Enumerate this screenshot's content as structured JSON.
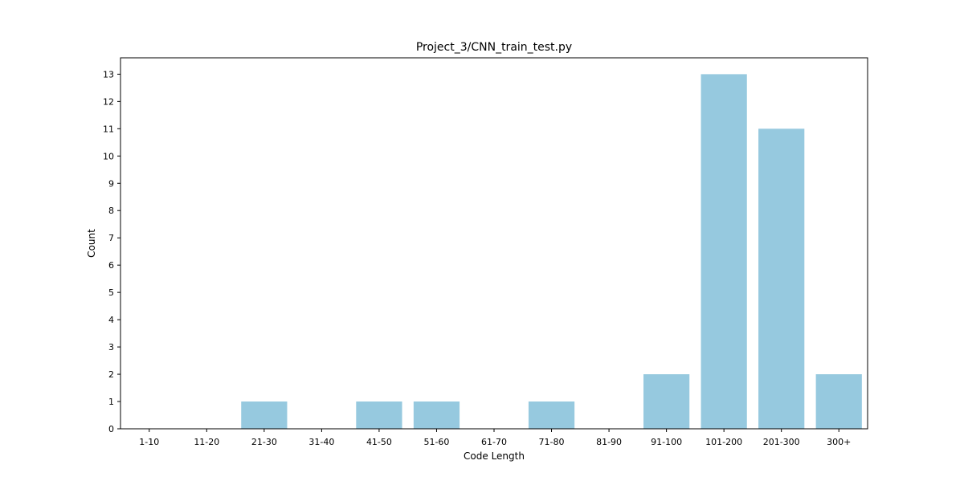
{
  "chart_data": {
    "type": "bar",
    "title": "Project_3/CNN_train_test.py",
    "xlabel": "Code Length",
    "ylabel": "Count",
    "categories": [
      "1-10",
      "11-20",
      "21-30",
      "31-40",
      "41-50",
      "51-60",
      "61-70",
      "71-80",
      "81-90",
      "91-100",
      "101-200",
      "201-300",
      "300+"
    ],
    "values": [
      0,
      0,
      1,
      0,
      1,
      1,
      0,
      1,
      0,
      2,
      13,
      11,
      2
    ],
    "y_ticks": [
      0,
      1,
      2,
      3,
      4,
      5,
      6,
      7,
      8,
      9,
      10,
      11,
      12,
      13
    ],
    "ylim": [
      0,
      13.6
    ],
    "grid": false,
    "legend": "none",
    "bar_color": "#96c9df",
    "axis_color": "#000000"
  }
}
